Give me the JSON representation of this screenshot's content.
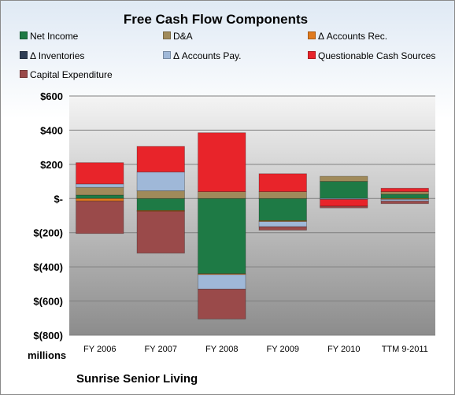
{
  "chart_data": {
    "type": "bar",
    "stacked": true,
    "title": "Free Cash Flow Components",
    "units_label": "millions",
    "company": "Sunrise Senior Living",
    "categories": [
      "FY 2006",
      "FY 2007",
      "FY 2008",
      "FY 2009",
      "FY 2010",
      "TTM 9-2011"
    ],
    "ylim": [
      -800,
      600
    ],
    "yticks": [
      600,
      400,
      200,
      0,
      -200,
      -400,
      -600,
      -800
    ],
    "ytick_labels": [
      "$600",
      "$400",
      "$200",
      "$-",
      "$(200)",
      "$(400)",
      "$(600)",
      "$(800)"
    ],
    "legend_position": "top",
    "grid": true,
    "series": [
      {
        "name": "Net Income",
        "color": "#1e7a45",
        "values": [
          20,
          -70,
          -440,
          -130,
          100,
          25
        ]
      },
      {
        "name": "D&A",
        "color": "#a08a5a",
        "values": [
          45,
          45,
          40,
          40,
          30,
          15
        ]
      },
      {
        "name": "Δ Accounts Rec.",
        "color": "#e07a1e",
        "values": [
          -15,
          -5,
          -5,
          -5,
          0,
          -5
        ]
      },
      {
        "name": "Δ Inventories",
        "color": "#2f3e55",
        "values": [
          0,
          0,
          0,
          0,
          0,
          0
        ]
      },
      {
        "name": "Δ Accounts Pay.",
        "color": "#9fb8d8",
        "values": [
          20,
          110,
          -85,
          -30,
          -5,
          -10
        ]
      },
      {
        "name": "Questionable Cash Sources",
        "color": "#e8242a",
        "values": [
          125,
          150,
          345,
          105,
          -40,
          20
        ]
      },
      {
        "name": "Capital Expenditure",
        "color": "#9a4a4a",
        "values": [
          -190,
          -245,
          -175,
          -20,
          -10,
          -15
        ]
      }
    ]
  }
}
